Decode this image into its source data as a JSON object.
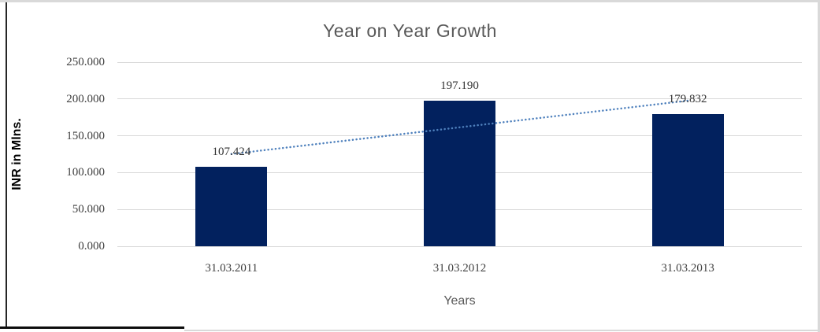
{
  "chart_data": {
    "type": "bar",
    "title": "Year on Year Growth",
    "xlabel": "Years",
    "ylabel": "INR in Mlns.",
    "categories": [
      "31.03.2011",
      "31.03.2012",
      "31.03.2013"
    ],
    "values": [
      107.424,
      197.19,
      179.832
    ],
    "data_labels": [
      "107.424",
      "197.190",
      "179.832"
    ],
    "ylim": [
      0,
      250
    ],
    "ytick_values": [
      0,
      50,
      100,
      150,
      200,
      250
    ],
    "ytick_labels": [
      "0.000",
      "50.000",
      "100.000",
      "150.000",
      "200.000",
      "250.000"
    ],
    "grid": "horizontal-only",
    "legend": "none",
    "trendline": {
      "type": "linear",
      "style": "dotted"
    },
    "colors": {
      "bar": "#02215E",
      "trendline": "#4F81BD",
      "gridline": "#D9D9D9",
      "title_text": "#595959",
      "tick_text": "#3F3F3F",
      "data_label_text": "#333333",
      "axis_title_y_text": "#000000",
      "axis_title_x_text": "#595959",
      "frame_light_border": "#D9D9D9",
      "frame_dark_border": "#262626",
      "frame_black_border": "#0D0D0D"
    }
  }
}
